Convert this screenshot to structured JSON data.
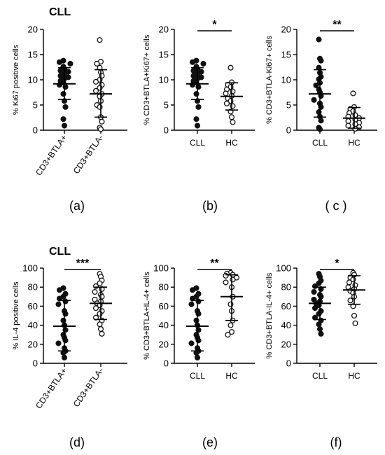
{
  "figure_labels": {
    "top_group": "CLL",
    "bottom_group": "CLL"
  },
  "chart_data": [
    {
      "type": "scatter",
      "panel": "(a)",
      "ylabel": "% Ki67 positive cells",
      "ylim": [
        0,
        20
      ],
      "yticks": [
        0,
        5,
        10,
        15,
        20
      ],
      "categories": [
        "CD3+BTLA+",
        "CD3+BTLA-"
      ],
      "rotated_categories": true,
      "significance": "",
      "series": [
        {
          "values": [
            13.8,
            13.5,
            13.2,
            12.6,
            12.1,
            11.8,
            11.6,
            11.2,
            10.8,
            10.5,
            10.2,
            9.8,
            9.5,
            9.0,
            8.6,
            7.2,
            5.8,
            4.6,
            2.2,
            0.9
          ],
          "filled": true,
          "mean": 9.2,
          "sd_low": 6.1,
          "sd_high": 12.4
        },
        {
          "values": [
            17.9,
            13.6,
            13.2,
            12.4,
            11.5,
            10.8,
            10.0,
            9.6,
            9.0,
            8.4,
            7.8,
            7.2,
            6.7,
            5.8,
            5.0,
            4.6,
            2.6,
            1.7,
            0.5,
            0.2
          ],
          "filled": false,
          "mean": 7.2,
          "sd_low": 2.6,
          "sd_high": 12.0
        }
      ]
    },
    {
      "type": "scatter",
      "panel": "(b)",
      "ylabel": "% CD3+BTLA+Ki67+ cells",
      "ylim": [
        0,
        20
      ],
      "yticks": [
        0,
        5,
        10,
        15,
        20
      ],
      "categories": [
        "CLL",
        "HC"
      ],
      "rotated_categories": false,
      "significance": "*",
      "series": [
        {
          "values": [
            13.8,
            13.5,
            13.2,
            12.6,
            12.1,
            11.8,
            11.6,
            11.2,
            10.8,
            10.5,
            10.2,
            9.8,
            9.5,
            9.0,
            8.6,
            7.2,
            5.8,
            4.6,
            2.2,
            0.9
          ],
          "filled": true,
          "mean": 9.2,
          "sd_low": 6.1,
          "sd_high": 12.4
        },
        {
          "values": [
            12.4,
            9.5,
            9.0,
            8.6,
            8.1,
            7.7,
            7.3,
            6.8,
            6.3,
            5.8,
            5.3,
            4.8,
            3.7,
            2.6,
            1.6
          ],
          "filled": false,
          "mean": 6.7,
          "sd_low": 4.0,
          "sd_high": 9.4
        }
      ]
    },
    {
      "type": "scatter",
      "panel": "( c )",
      "ylabel": "% CD3+BTLA-Ki67+ cells",
      "ylim": [
        0,
        20
      ],
      "yticks": [
        0,
        5,
        10,
        15,
        20
      ],
      "categories": [
        "CLL",
        "HC"
      ],
      "rotated_categories": false,
      "significance": "**",
      "series": [
        {
          "values": [
            18.0,
            14.2,
            13.8,
            12.4,
            11.4,
            10.6,
            10.1,
            9.4,
            8.9,
            8.1,
            7.5,
            6.8,
            6.0,
            5.3,
            4.6,
            3.6,
            2.7,
            1.9,
            0.5,
            0.2
          ],
          "filled": true,
          "mean": 7.2,
          "sd_low": 2.6,
          "sd_high": 12.0
        },
        {
          "values": [
            7.3,
            4.6,
            4.2,
            3.8,
            3.4,
            3.0,
            2.7,
            2.4,
            2.1,
            1.8,
            1.5,
            1.2,
            0.9,
            0.6,
            0.3
          ],
          "filled": false,
          "mean": 2.4,
          "sd_low": 0.4,
          "sd_high": 4.5
        }
      ]
    },
    {
      "type": "scatter",
      "panel": "(d)",
      "ylabel": "% IL-4 positive cells",
      "ylim": [
        0,
        100
      ],
      "yticks": [
        0,
        20,
        40,
        60,
        80,
        100
      ],
      "categories": [
        "CD3+BTLA+",
        "CD3+BTLA-"
      ],
      "rotated_categories": true,
      "significance": "***",
      "series": [
        {
          "values": [
            79,
            77,
            73,
            70,
            68,
            65,
            62,
            55,
            52,
            45,
            40,
            35,
            30,
            27,
            24,
            21,
            16,
            13,
            11,
            6
          ],
          "filled": true,
          "mean": 39,
          "sd_low": 13,
          "sd_high": 66
        },
        {
          "values": [
            94,
            91,
            87,
            84,
            81,
            78,
            75,
            72,
            70,
            67,
            65,
            63,
            61,
            58,
            55,
            52,
            48,
            45,
            41,
            36,
            31
          ],
          "filled": false,
          "mean": 63,
          "sd_low": 46,
          "sd_high": 80
        }
      ]
    },
    {
      "type": "scatter",
      "panel": "(e)",
      "ylabel": "% CD3+BTLA+IL-4+ cells",
      "ylim": [
        0,
        100
      ],
      "yticks": [
        0,
        20,
        40,
        60,
        80,
        100
      ],
      "categories": [
        "CLL",
        "HC"
      ],
      "rotated_categories": false,
      "significance": "**",
      "series": [
        {
          "values": [
            79,
            77,
            73,
            70,
            68,
            65,
            62,
            55,
            52,
            45,
            40,
            35,
            30,
            27,
            24,
            21,
            16,
            13,
            11,
            6
          ],
          "filled": true,
          "mean": 39,
          "sd_low": 13,
          "sd_high": 66
        },
        {
          "values": [
            95,
            94,
            93,
            92,
            90,
            88,
            85,
            80,
            70,
            62,
            55,
            45,
            40,
            33,
            30
          ],
          "filled": false,
          "mean": 70,
          "sd_low": 45,
          "sd_high": 93
        }
      ]
    },
    {
      "type": "scatter",
      "panel": "(f)",
      "ylabel": "% CD3+BTLA-IL-4+ cells",
      "ylim": [
        0,
        100
      ],
      "yticks": [
        0,
        20,
        40,
        60,
        80,
        100
      ],
      "categories": [
        "CLL",
        "HC"
      ],
      "rotated_categories": false,
      "significance": "*",
      "series": [
        {
          "values": [
            94,
            91,
            87,
            84,
            81,
            78,
            75,
            72,
            70,
            67,
            65,
            63,
            61,
            58,
            55,
            52,
            48,
            45,
            41,
            36,
            31
          ],
          "filled": true,
          "mean": 63,
          "sd_low": 46,
          "sd_high": 80
        },
        {
          "values": [
            95,
            93,
            90,
            88,
            85,
            82,
            80,
            78,
            76,
            74,
            70,
            66,
            60,
            50,
            42
          ],
          "filled": false,
          "mean": 77,
          "sd_low": 62,
          "sd_high": 92
        }
      ]
    }
  ]
}
